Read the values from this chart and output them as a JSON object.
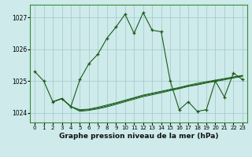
{
  "title": "Graphe pression niveau de la mer (hPa)",
  "xlim": [
    -0.5,
    23.5
  ],
  "ylim": [
    1023.7,
    1027.4
  ],
  "yticks": [
    1024,
    1025,
    1026,
    1027
  ],
  "xticks": [
    0,
    1,
    2,
    3,
    4,
    5,
    6,
    7,
    8,
    9,
    10,
    11,
    12,
    13,
    14,
    15,
    16,
    17,
    18,
    19,
    20,
    21,
    22,
    23
  ],
  "bg_color": "#ceeaea",
  "line_color": "#1a5c1a",
  "grid_color": "#9ec8c8",
  "main_series": [
    1025.3,
    1025.0,
    1024.35,
    1024.45,
    1024.2,
    1025.05,
    1025.55,
    1025.85,
    1026.35,
    1026.7,
    1027.1,
    1026.5,
    1027.15,
    1026.6,
    1026.55,
    1025.0,
    1024.1,
    1024.35,
    1024.05,
    1024.1,
    1025.0,
    1024.5,
    1025.25,
    1025.05
  ],
  "trend1": [
    1024.35,
    1024.45,
    1024.2,
    1024.1,
    1024.12,
    1024.18,
    1024.25,
    1024.32,
    1024.4,
    1024.48,
    1024.56,
    1024.62,
    1024.68,
    1024.74,
    1024.8,
    1024.87,
    1024.93,
    1024.98,
    1025.03,
    1025.08,
    1025.13,
    1025.18
  ],
  "trend2": [
    1024.35,
    1024.45,
    1024.2,
    1024.08,
    1024.1,
    1024.15,
    1024.22,
    1024.3,
    1024.38,
    1024.46,
    1024.54,
    1024.6,
    1024.66,
    1024.72,
    1024.78,
    1024.85,
    1024.9,
    1024.96,
    1025.01,
    1025.06,
    1025.11,
    1025.17
  ],
  "trend3": [
    1024.35,
    1024.45,
    1024.2,
    1024.05,
    1024.08,
    1024.13,
    1024.19,
    1024.27,
    1024.35,
    1024.43,
    1024.51,
    1024.57,
    1024.63,
    1024.7,
    1024.76,
    1024.83,
    1024.88,
    1024.94,
    1024.99,
    1025.04,
    1025.1,
    1025.15
  ],
  "trend_xstart": 2,
  "title_fontsize": 6.5,
  "tick_fontsize": 5.0
}
